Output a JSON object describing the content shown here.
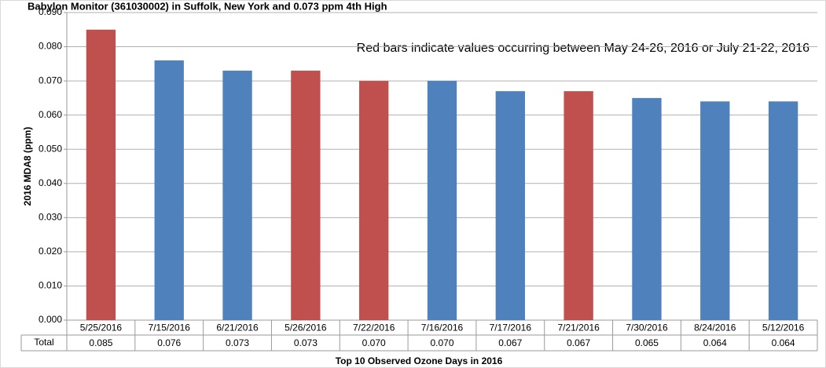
{
  "chart_data": {
    "type": "bar",
    "title": "Babylon Monitor (361030002) in Suffolk, New York and 0.073 ppm 4th High",
    "annotation": "Red bars indicate values occurring between May 24-26, 2016 or July 21-22, 2016",
    "y_label": "2016 MDA8 (ppm)",
    "x_label": "Top 10 Observed Ozone Days in 2016",
    "table_row_label": "Total",
    "categories": [
      "5/25/2016",
      "7/15/2016",
      "6/21/2016",
      "5/26/2016",
      "7/22/2016",
      "7/16/2016",
      "7/17/2016",
      "7/21/2016",
      "7/30/2016",
      "8/24/2016",
      "5/12/2016"
    ],
    "values": [
      0.085,
      0.076,
      0.073,
      0.073,
      0.07,
      0.07,
      0.067,
      0.067,
      0.065,
      0.064,
      0.064
    ],
    "value_labels": [
      "0.085",
      "0.076",
      "0.073",
      "0.073",
      "0.070",
      "0.070",
      "0.067",
      "0.067",
      "0.065",
      "0.064",
      "0.064"
    ],
    "colors": [
      "#c0504d",
      "#4f81bd",
      "#4f81bd",
      "#c0504d",
      "#c0504d",
      "#4f81bd",
      "#4f81bd",
      "#c0504d",
      "#4f81bd",
      "#4f81bd",
      "#4f81bd"
    ],
    "ylim": [
      0,
      0.09
    ],
    "yticks": [
      {
        "value": 0,
        "label": "0.000"
      },
      {
        "value": 0.01,
        "label": "0.010"
      },
      {
        "value": 0.02,
        "label": "0.020"
      },
      {
        "value": 0.03,
        "label": "0.030"
      },
      {
        "value": 0.04,
        "label": "0.040"
      },
      {
        "value": 0.05,
        "label": "0.050"
      },
      {
        "value": 0.06,
        "label": "0.060"
      },
      {
        "value": 0.07,
        "label": "0.070"
      },
      {
        "value": 0.08,
        "label": "0.080"
      },
      {
        "value": 0.09,
        "label": "0.090"
      }
    ],
    "grid": true
  }
}
